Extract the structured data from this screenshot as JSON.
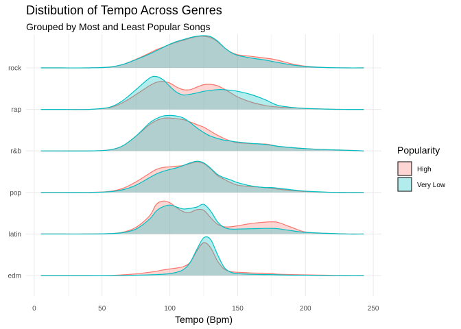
{
  "chart_data": {
    "type": "area",
    "subtype": "ridgeline-density",
    "title": "Distibution of Tempo Across Genres",
    "subtitle": "Grouped by Most and Least Popular Songs",
    "xlabel": "Tempo (Bpm)",
    "ylabel": "",
    "xlim": [
      -6,
      256
    ],
    "x_ticks": [
      0,
      50,
      100,
      150,
      200,
      250
    ],
    "x_tick_labels": [
      "0",
      "50",
      "100",
      "150",
      "200",
      "250"
    ],
    "categories": [
      "edm",
      "latin",
      "pop",
      "r&b",
      "rap",
      "rock"
    ],
    "grid": true,
    "legend": {
      "title": "Popularity",
      "position": "right",
      "entries": [
        {
          "label": "High",
          "fill": "#f8766d",
          "stroke": "#f8766d"
        },
        {
          "label": "Very Low",
          "fill": "#00bfc4",
          "stroke": "#00bfc4"
        }
      ]
    },
    "x": [
      5,
      20,
      40,
      55,
      65,
      75,
      85,
      90,
      95,
      100,
      105,
      110,
      115,
      120,
      125,
      130,
      135,
      140,
      145,
      150,
      160,
      170,
      175,
      180,
      190,
      200,
      215,
      230,
      243
    ],
    "series": [
      {
        "name": "High",
        "color": "#f8766d",
        "ridges": {
          "edm": [
            0,
            0,
            0,
            0,
            0.02,
            0.05,
            0.1,
            0.13,
            0.17,
            0.2,
            0.23,
            0.27,
            0.4,
            0.75,
            1.0,
            0.85,
            0.45,
            0.2,
            0.12,
            0.1,
            0.08,
            0.07,
            0.06,
            0.04,
            0.03,
            0.02,
            0.01,
            0,
            0
          ],
          "latin": [
            0,
            0,
            0,
            0.01,
            0.05,
            0.2,
            0.55,
            0.9,
            1.0,
            0.95,
            0.8,
            0.68,
            0.66,
            0.74,
            0.72,
            0.5,
            0.3,
            0.22,
            0.22,
            0.25,
            0.32,
            0.36,
            0.37,
            0.35,
            0.2,
            0.06,
            0.02,
            0,
            0
          ],
          "pop": [
            0,
            0,
            0,
            0.03,
            0.12,
            0.32,
            0.58,
            0.7,
            0.76,
            0.78,
            0.8,
            0.82,
            0.88,
            0.93,
            0.88,
            0.72,
            0.52,
            0.4,
            0.3,
            0.22,
            0.18,
            0.15,
            0.13,
            0.1,
            0.06,
            0.03,
            0.01,
            0,
            0
          ],
          "r&b": [
            0,
            0,
            0,
            0.03,
            0.15,
            0.45,
            0.8,
            0.92,
            0.99,
            1.0,
            0.98,
            0.95,
            0.88,
            0.8,
            0.72,
            0.6,
            0.48,
            0.38,
            0.3,
            0.25,
            0.22,
            0.21,
            0.18,
            0.14,
            0.1,
            0.07,
            0.04,
            0.02,
            0
          ],
          "rap": [
            0,
            0,
            0,
            0.05,
            0.2,
            0.45,
            0.72,
            0.82,
            0.85,
            0.8,
            0.68,
            0.6,
            0.6,
            0.68,
            0.75,
            0.76,
            0.72,
            0.62,
            0.5,
            0.38,
            0.22,
            0.12,
            0.09,
            0.07,
            0.05,
            0.03,
            0.01,
            0,
            0
          ],
          "rock": [
            0,
            0,
            0,
            0.02,
            0.1,
            0.26,
            0.45,
            0.55,
            0.63,
            0.71,
            0.78,
            0.84,
            0.9,
            0.95,
            0.96,
            0.92,
            0.8,
            0.62,
            0.48,
            0.4,
            0.35,
            0.3,
            0.27,
            0.23,
            0.12,
            0.05,
            0.01,
            0,
            0
          ]
        }
      },
      {
        "name": "Very Low",
        "color": "#00bfc4",
        "ridges": {
          "edm": [
            0,
            0,
            0,
            0,
            0,
            0.01,
            0.02,
            0.03,
            0.04,
            0.06,
            0.1,
            0.18,
            0.4,
            0.8,
            1.15,
            1.1,
            0.65,
            0.25,
            0.1,
            0.06,
            0.04,
            0.03,
            0.03,
            0.02,
            0.01,
            0.01,
            0,
            0,
            0
          ],
          "latin": [
            0,
            0,
            0,
            0.01,
            0.04,
            0.15,
            0.45,
            0.7,
            0.83,
            0.88,
            0.82,
            0.76,
            0.78,
            0.82,
            0.9,
            0.7,
            0.38,
            0.2,
            0.15,
            0.15,
            0.16,
            0.17,
            0.17,
            0.16,
            0.1,
            0.05,
            0.02,
            0,
            0
          ],
          "pop": [
            0,
            0,
            0,
            0.02,
            0.08,
            0.22,
            0.45,
            0.56,
            0.64,
            0.7,
            0.75,
            0.82,
            0.9,
            0.95,
            0.9,
            0.74,
            0.55,
            0.45,
            0.38,
            0.3,
            0.2,
            0.15,
            0.15,
            0.13,
            0.08,
            0.04,
            0.01,
            0,
            0
          ],
          "r&b": [
            0,
            0,
            0,
            0.03,
            0.15,
            0.45,
            0.85,
            0.98,
            1.06,
            1.08,
            1.06,
            1.0,
            0.86,
            0.7,
            0.56,
            0.45,
            0.38,
            0.33,
            0.3,
            0.27,
            0.23,
            0.2,
            0.17,
            0.14,
            0.1,
            0.07,
            0.04,
            0.02,
            0
          ],
          "rap": [
            0,
            0,
            0,
            0.06,
            0.26,
            0.6,
            0.95,
            1.0,
            0.9,
            0.7,
            0.52,
            0.44,
            0.46,
            0.5,
            0.55,
            0.58,
            0.6,
            0.6,
            0.58,
            0.55,
            0.45,
            0.3,
            0.2,
            0.12,
            0.06,
            0.03,
            0.01,
            0,
            0
          ],
          "rock": [
            0,
            0,
            0,
            0.02,
            0.1,
            0.25,
            0.42,
            0.52,
            0.62,
            0.72,
            0.8,
            0.86,
            0.92,
            0.96,
            0.98,
            0.95,
            0.82,
            0.62,
            0.47,
            0.38,
            0.3,
            0.24,
            0.2,
            0.16,
            0.09,
            0.04,
            0.01,
            0,
            0
          ]
        }
      }
    ]
  }
}
